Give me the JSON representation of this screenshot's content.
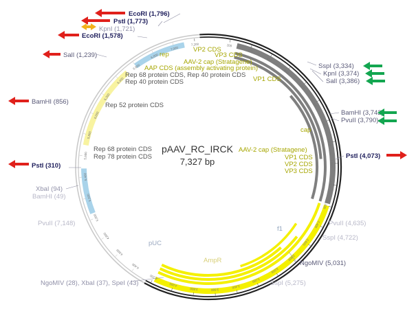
{
  "plasmid": {
    "name": "pAAV_RC_IRCK",
    "size_label": "7,327 bp",
    "length": 7327
  },
  "colors": {
    "backbone": "#222222",
    "backbone_light": "#c9c9c9",
    "feature_gray": "#7f7f7f",
    "feature_yellow": "#f4f000",
    "feature_blue": "#a9d3ea",
    "feature_pale_yellow": "#f8f3a0",
    "label_dark": "#1f1f5c",
    "label_gray": "#9090a8",
    "label_feature": "#555555",
    "label_yellow": "#a6a600",
    "arrow_red": "#e0201b",
    "arrow_green": "#13a650",
    "arrow_orange": "#f2b21c"
  },
  "tick_labels": [
    "200",
    "400",
    "600",
    "800",
    "1,000",
    "1,200",
    "1,400",
    "1,600",
    "1,800",
    "2,000",
    "2,200",
    "2,400",
    "2,600",
    "2,800",
    "3,000",
    "3,200",
    "3,400",
    "3,600",
    "3,800",
    "4,000",
    "4,200",
    "4,400",
    "4,600",
    "4,800",
    "5,000",
    "5,200",
    "5,400",
    "5,600",
    "5,800",
    "6,000",
    "6,200",
    "6,400",
    "6,600",
    "6,800",
    "7,000",
    "7,200"
  ],
  "sites": [
    {
      "id": "ecori-1796",
      "label": "EcoRI (1,796)",
      "pos": 1796,
      "style": "dark",
      "bold": true,
      "arrow": "red"
    },
    {
      "id": "psti-1773",
      "label": "PstI (1,773)",
      "pos": 1773,
      "style": "dark",
      "bold": true,
      "arrow": "red"
    },
    {
      "id": "kpni-1721",
      "label": "KpnI (1,721)",
      "pos": 1721,
      "style": "gray",
      "bold": false,
      "arrow": "orange"
    },
    {
      "id": "ecori-1578",
      "label": "EcoRI (1,578)",
      "pos": 1578,
      "style": "dark",
      "bold": true,
      "arrow": "red"
    },
    {
      "id": "sali-1239",
      "label": "SalI (1,239)",
      "pos": 1239,
      "style": "gray",
      "bold": false,
      "arrow": "red"
    },
    {
      "id": "bamhi-856",
      "label": "BamHI (856)",
      "pos": 856,
      "style": "gray",
      "bold": false,
      "arrow": "red"
    },
    {
      "id": "psti-310",
      "label": "PstI (310)",
      "pos": 310,
      "style": "dark",
      "bold": true,
      "arrow": "red"
    },
    {
      "id": "xbai-94",
      "label": "XbaI (94)",
      "pos": 94,
      "style": "gray",
      "bold": false,
      "arrow": ""
    },
    {
      "id": "bamhi-49",
      "label": "BamHI (49)",
      "pos": 49,
      "style": "light",
      "bold": false,
      "arrow": ""
    },
    {
      "id": "sspi-3334",
      "label": "SspI (3,334)",
      "pos": 3334,
      "style": "gray",
      "bold": false,
      "arrow": "green"
    },
    {
      "id": "kpni-3374",
      "label": "KpnI (3,374)",
      "pos": 3374,
      "style": "gray",
      "bold": false,
      "arrow": "green"
    },
    {
      "id": "sali-3386",
      "label": "SalI (3,386)",
      "pos": 3386,
      "style": "gray",
      "bold": false,
      "arrow": "green"
    },
    {
      "id": "bamhi-3742",
      "label": "BamHI (3,742)",
      "pos": 3742,
      "style": "gray",
      "bold": false,
      "arrow": "green"
    },
    {
      "id": "pvuii-3790",
      "label": "PvuII (3,790)",
      "pos": 3790,
      "style": "gray",
      "bold": false,
      "arrow": "green"
    },
    {
      "id": "psti-4073",
      "label": "PstI (4,073)",
      "pos": 4073,
      "style": "dark",
      "bold": true,
      "arrow": "red"
    },
    {
      "id": "pvuii-4635",
      "label": "PvuII (4,635)",
      "pos": 4635,
      "style": "light",
      "bold": false,
      "arrow": ""
    },
    {
      "id": "sspi-4722",
      "label": "SspI (4,722)",
      "pos": 4722,
      "style": "light",
      "bold": false,
      "arrow": ""
    },
    {
      "id": "ngomiv-5031",
      "label": "NgoMIV (5,031)",
      "pos": 5031,
      "style": "gray",
      "bold": false,
      "arrow": ""
    },
    {
      "id": "sspi-5275",
      "label": "SspI (5,275)",
      "pos": 5275,
      "style": "light",
      "bold": false,
      "arrow": ""
    },
    {
      "id": "ngomiv-multi",
      "label": "NgoMIV (28), XbaI (37), SpeI (43)",
      "pos": 40,
      "style": "gray",
      "bold": false,
      "arrow": ""
    },
    {
      "id": "pvuii-7148",
      "label": "PvuII (7,148)",
      "pos": 7148,
      "style": "light",
      "bold": false,
      "arrow": ""
    }
  ],
  "feature_labels": [
    {
      "id": "rep",
      "text": "rep",
      "style": "yellow"
    },
    {
      "id": "vp2-cds-top",
      "text": "VP2 CDS",
      "style": "yellow"
    },
    {
      "id": "vp3-cds-top",
      "text": "VP3 CDS",
      "style": "yellow"
    },
    {
      "id": "aav2-cap-top",
      "text": "AAV-2 cap (Stratagene)",
      "style": "yellow"
    },
    {
      "id": "aap-cds",
      "text": "AAP CDS (assembly activating protein)",
      "style": "yellow"
    },
    {
      "id": "vp1-cds-top",
      "text": "VP1 CDS",
      "style": "yellow"
    },
    {
      "id": "rep68-40",
      "text": "Rep 68 protein CDS, Rep 40 protein CDS",
      "style": "feature"
    },
    {
      "id": "rep40",
      "text": "Rep 40 protein CDS",
      "style": "feature"
    },
    {
      "id": "rep52",
      "text": "Rep 52 protein CDS",
      "style": "feature"
    },
    {
      "id": "rep68",
      "text": "Rep 68 protein CDS",
      "style": "feature"
    },
    {
      "id": "rep78",
      "text": "Rep 78 protein CDS",
      "style": "feature"
    },
    {
      "id": "cap",
      "text": "cap",
      "style": "yellow"
    },
    {
      "id": "aav2-cap-right",
      "text": "AAV-2 cap (Stratagene)",
      "style": "yellow"
    },
    {
      "id": "vp1-cds-right",
      "text": "VP1 CDS",
      "style": "yellow"
    },
    {
      "id": "vp2-cds-right",
      "text": "VP2 CDS",
      "style": "yellow"
    },
    {
      "id": "vp3-cds-right",
      "text": "VP3 CDS",
      "style": "yellow"
    },
    {
      "id": "puc",
      "text": "pUC",
      "style": "light"
    },
    {
      "id": "ampr",
      "text": "AmpR",
      "style": "pale"
    },
    {
      "id": "f1",
      "text": "f1",
      "style": "light"
    }
  ],
  "features": [
    {
      "id": "rep-gene",
      "start": 270,
      "end": 2180,
      "color": "gray",
      "ring": "outer"
    },
    {
      "id": "cap-gene",
      "start": 2200,
      "end": 4180,
      "color": "yellow",
      "ring": "outer"
    },
    {
      "id": "rep78-cds",
      "start": 270,
      "end": 2180,
      "color": "gray",
      "ring": "a"
    },
    {
      "id": "rep68-cds",
      "start": 270,
      "end": 1750,
      "color": "gray",
      "ring": "b"
    },
    {
      "id": "rep52-cds",
      "start": 1000,
      "end": 2180,
      "color": "gray",
      "ring": "c"
    },
    {
      "id": "vp1-cds",
      "start": 2200,
      "end": 4180,
      "color": "yellow",
      "ring": "a"
    },
    {
      "id": "vp2-cds",
      "start": 2610,
      "end": 4180,
      "color": "yellow",
      "ring": "b"
    },
    {
      "id": "vp3-cds",
      "start": 2810,
      "end": 4180,
      "color": "yellow",
      "ring": "c"
    },
    {
      "id": "aap-cds-arc",
      "start": 2500,
      "end": 3300,
      "color": "yellow",
      "ring": "d"
    },
    {
      "id": "f1-ori",
      "start": 5050,
      "end": 5480,
      "color": "blue",
      "ring": "outer"
    },
    {
      "id": "ampr-gene",
      "start": 5700,
      "end": 6500,
      "color": "pale",
      "ring": "outer"
    },
    {
      "id": "puc-ori",
      "start": 6600,
      "end": 7100,
      "color": "blue",
      "ring": "outer"
    }
  ]
}
